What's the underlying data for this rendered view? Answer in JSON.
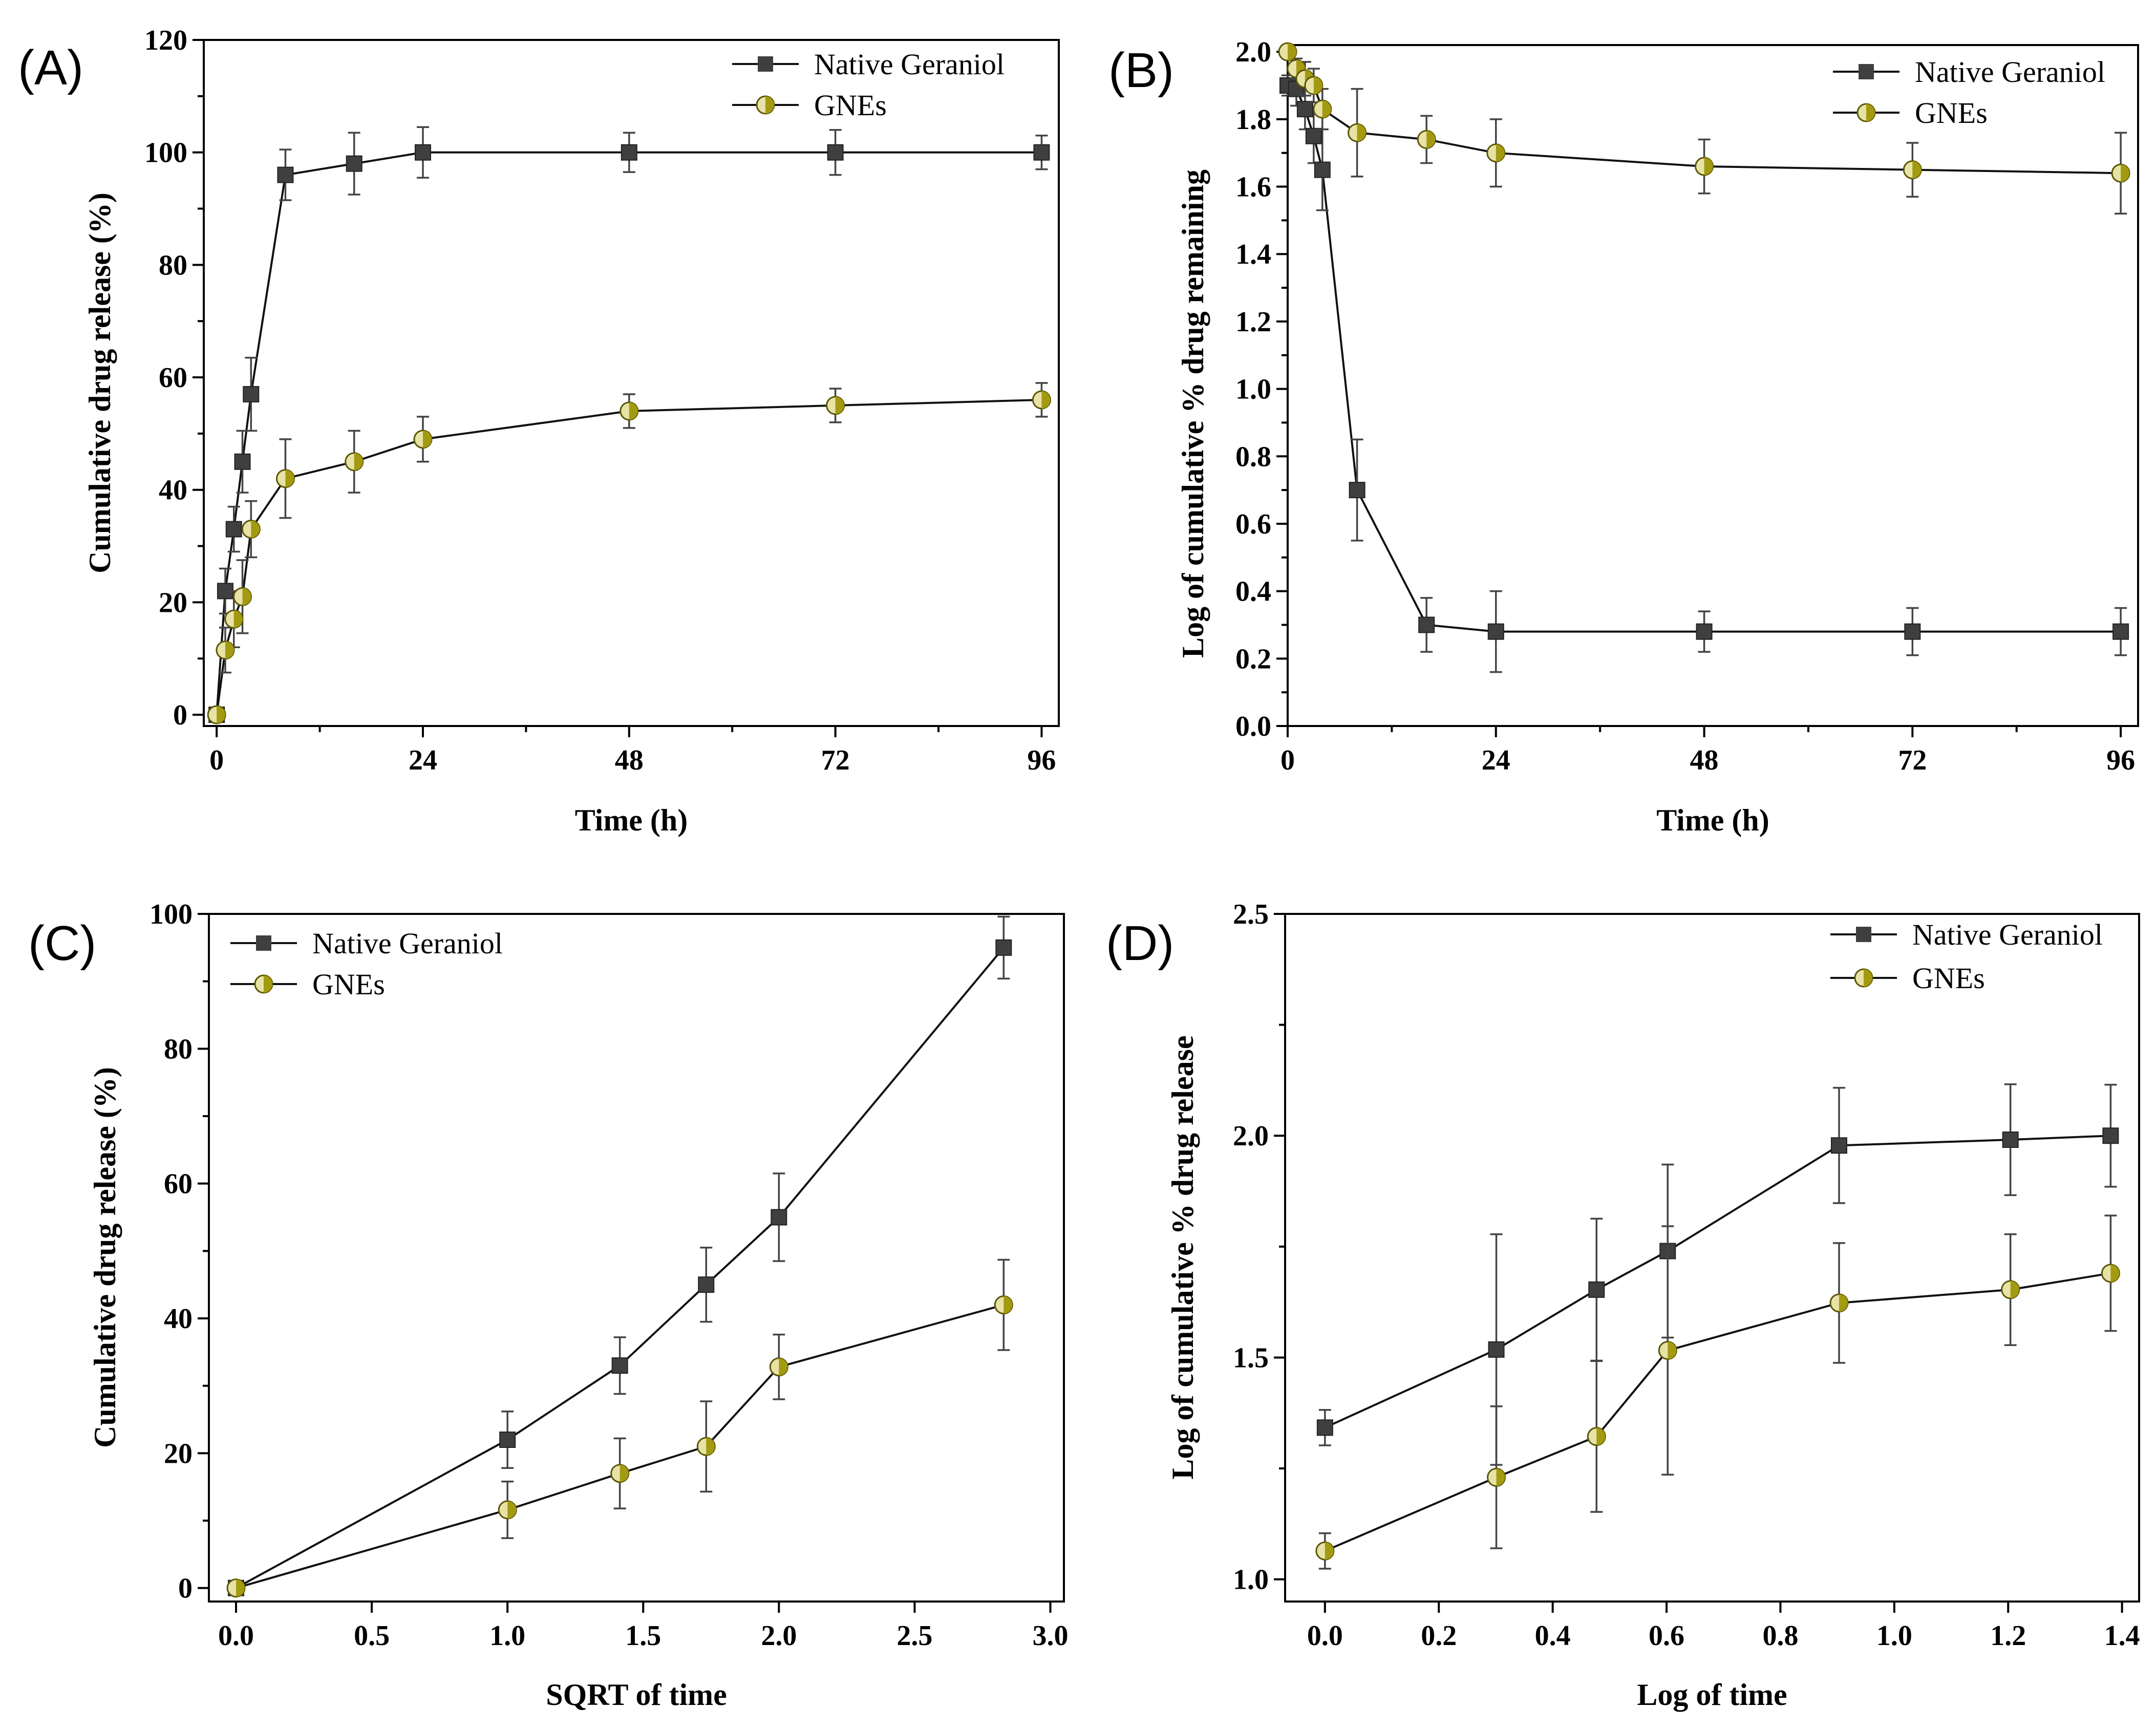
{
  "figure": {
    "panels": [
      {
        "id": "A",
        "label": "(A)"
      },
      {
        "id": "B",
        "label": "(B)"
      },
      {
        "id": "C",
        "label": "(C)"
      },
      {
        "id": "D",
        "label": "(D)"
      }
    ]
  },
  "colors": {
    "native_marker": "#3f3f3f",
    "gnes_marker": "#a39a12",
    "gnes_marker_light": "#e7e2a6",
    "line": "#111111",
    "error_bar": "#555555"
  },
  "chart_data": [
    {
      "type": "line",
      "panel": "A",
      "title": "",
      "xlabel": "Time (h)",
      "ylabel": "Cumulative drug release (%)",
      "xlim": [
        -1.5,
        98
      ],
      "ylim": [
        -2,
        120
      ],
      "xticks": [
        0,
        24,
        48,
        72,
        96
      ],
      "xtick_labels": [
        "0",
        "24",
        "48",
        "72",
        "96"
      ],
      "xminor": [
        12,
        36,
        60,
        84
      ],
      "yticks": [
        0,
        20,
        40,
        60,
        80,
        100,
        120
      ],
      "ytick_labels": [
        "0",
        "20",
        "40",
        "60",
        "80",
        "100",
        "120"
      ],
      "yminor": [
        10,
        30,
        50,
        70,
        90,
        110
      ],
      "legend_position": "top-right",
      "series": [
        {
          "name": "Native Geraniol",
          "marker": "square",
          "x": [
            0,
            1,
            2,
            3,
            4,
            8,
            16,
            24,
            48,
            72,
            96
          ],
          "y": [
            0,
            22,
            33,
            45,
            57,
            96,
            98,
            100,
            100,
            100,
            100
          ],
          "err": [
            0,
            4,
            4,
            5.5,
            6.5,
            4.5,
            5.5,
            4.5,
            3.5,
            4,
            3
          ]
        },
        {
          "name": "GNEs",
          "marker": "circle",
          "x": [
            0,
            1,
            2,
            3,
            4,
            8,
            16,
            24,
            48,
            72,
            96
          ],
          "y": [
            0,
            11.5,
            17,
            21,
            33,
            42,
            45,
            49,
            54,
            55,
            56
          ],
          "err": [
            0,
            4,
            5,
            6.5,
            5,
            7,
            5.5,
            4,
            3,
            3,
            3
          ]
        }
      ]
    },
    {
      "type": "line",
      "panel": "B",
      "title": "",
      "xlabel": "Time (h)",
      "ylabel": "Log of cumulative % drug remaining",
      "xlim": [
        0,
        98
      ],
      "ylim": [
        0,
        2.02
      ],
      "xticks": [
        0,
        24,
        48,
        72,
        96
      ],
      "xtick_labels": [
        "0",
        "24",
        "48",
        "72",
        "96"
      ],
      "xminor": [
        12,
        36,
        60,
        84
      ],
      "yticks": [
        0,
        0.2,
        0.4,
        0.6,
        0.8,
        1.0,
        1.2,
        1.4,
        1.6,
        1.8,
        2.0
      ],
      "ytick_labels": [
        "0.0",
        "0.2",
        "0.4",
        "0.6",
        "0.8",
        "1.0",
        "1.2",
        "1.4",
        "1.6",
        "1.8",
        "2.0"
      ],
      "yminor": [
        0.1,
        0.3,
        0.5,
        0.7,
        0.9,
        1.1,
        1.3,
        1.5,
        1.7,
        1.9
      ],
      "legend_position": "top-right",
      "series": [
        {
          "name": "Native Geraniol",
          "marker": "square",
          "x": [
            0,
            1,
            2,
            3,
            4,
            8,
            16,
            24,
            48,
            72,
            96
          ],
          "y": [
            1.9,
            1.89,
            1.83,
            1.75,
            1.65,
            0.7,
            0.3,
            0.28,
            0.28,
            0.28,
            0.28
          ],
          "err": [
            0.03,
            0.05,
            0.06,
            0.08,
            0.12,
            0.15,
            0.08,
            0.12,
            0.06,
            0.07,
            0.07
          ]
        },
        {
          "name": "GNEs",
          "marker": "circle",
          "x": [
            0,
            1,
            2,
            3,
            4,
            8,
            16,
            24,
            48,
            72,
            96
          ],
          "y": [
            2.0,
            1.95,
            1.92,
            1.9,
            1.83,
            1.76,
            1.74,
            1.7,
            1.66,
            1.65,
            1.64
          ],
          "err": [
            0.02,
            0.03,
            0.05,
            0.05,
            0.06,
            0.13,
            0.07,
            0.1,
            0.08,
            0.08,
            0.12
          ]
        }
      ]
    },
    {
      "type": "line",
      "panel": "C",
      "title": "",
      "xlabel": "SQRT of time",
      "ylabel": "Cumulative drug release (%)",
      "xlim": [
        -0.1,
        3.05
      ],
      "ylim": [
        -2,
        100
      ],
      "xticks": [
        0.0,
        0.5,
        1.0,
        1.5,
        2.0,
        2.5,
        3.0
      ],
      "xtick_labels": [
        "0.0",
        "0.5",
        "1.0",
        "1.5",
        "2.0",
        "2.5",
        "3.0"
      ],
      "xminor": [],
      "yticks": [
        0,
        20,
        40,
        60,
        80,
        100
      ],
      "ytick_labels": [
        "0",
        "20",
        "40",
        "60",
        "80",
        "100"
      ],
      "yminor": [
        10,
        30,
        50,
        70,
        90
      ],
      "legend_position": "top-left",
      "series": [
        {
          "name": "Native Geraniol",
          "marker": "square",
          "x": [
            0,
            1.0,
            1.414,
            1.732,
            2.0,
            2.828
          ],
          "y": [
            0,
            22,
            33,
            45,
            55,
            95
          ],
          "err": [
            0,
            4.2,
            4.2,
            5.5,
            6.5,
            4.6
          ]
        },
        {
          "name": "GNEs",
          "marker": "circle",
          "x": [
            0,
            1.0,
            1.414,
            1.732,
            2.0,
            2.828
          ],
          "y": [
            0,
            11.6,
            17,
            21,
            32.8,
            42
          ],
          "err": [
            0,
            4.2,
            5.2,
            6.7,
            4.8,
            6.7
          ]
        }
      ]
    },
    {
      "type": "line",
      "panel": "D",
      "title": "",
      "xlabel": "Log of time",
      "ylabel": "Log of cumulative % drug release",
      "xlim": [
        -0.07,
        1.43
      ],
      "ylim": [
        0.95,
        2.5
      ],
      "xticks": [
        0.0,
        0.2,
        0.4,
        0.6,
        0.8,
        1.0,
        1.2,
        1.4
      ],
      "xtick_labels": [
        "0.0",
        "0.2",
        "0.4",
        "0.6",
        "0.8",
        "1.0",
        "1.2",
        "1.4"
      ],
      "xminor": [],
      "yticks": [
        1.0,
        1.5,
        2.0,
        2.5
      ],
      "ytick_labels": [
        "1.0",
        "1.5",
        "2.0",
        "2.5"
      ],
      "yminor": [
        1.25,
        1.75,
        2.25
      ],
      "legend_position": "top-right",
      "series": [
        {
          "name": "Native Geraniol",
          "marker": "square",
          "x": [
            0,
            0.301,
            0.477,
            0.602,
            0.903,
            1.204,
            1.38
          ],
          "y": [
            1.342,
            1.518,
            1.653,
            1.74,
            1.978,
            1.991,
            2.0
          ],
          "err": [
            0.04,
            0.26,
            0.16,
            0.195,
            0.13,
            0.125,
            0.115
          ]
        },
        {
          "name": "GNEs",
          "marker": "circle",
          "x": [
            0,
            0.301,
            0.477,
            0.602,
            0.903,
            1.204,
            1.38
          ],
          "y": [
            1.064,
            1.23,
            1.322,
            1.516,
            1.623,
            1.653,
            1.69
          ],
          "err": [
            0.04,
            0.16,
            0.17,
            0.28,
            0.135,
            0.125,
            0.13
          ]
        }
      ]
    }
  ]
}
